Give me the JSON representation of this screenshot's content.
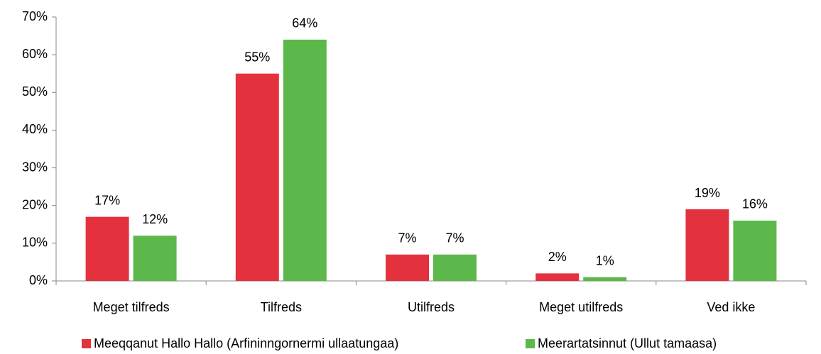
{
  "chart_data": {
    "type": "bar",
    "categories": [
      "Meget tilfreds",
      "Tilfreds",
      "Utilfreds",
      "Meget utilfreds",
      "Ved ikke"
    ],
    "series": [
      {
        "name": "Meeqqanut Hallo Hallo (Arfininngornermi ullaatungaa)",
        "color": "#e3323e",
        "values": [
          17,
          55,
          7,
          2,
          19
        ],
        "value_labels": [
          "17%",
          "55%",
          "7%",
          "2%",
          "19%"
        ]
      },
      {
        "name": "Meerartatsinnut (Ullut tamaasa)",
        "color": "#5cb84a",
        "values": [
          12,
          64,
          7,
          1,
          16
        ],
        "value_labels": [
          "12%",
          "64%",
          "7%",
          "1%",
          "16%"
        ]
      }
    ],
    "ylim": [
      0,
      70
    ],
    "yticks": [
      {
        "value": 0,
        "label": "0%"
      },
      {
        "value": 10,
        "label": "10%"
      },
      {
        "value": 20,
        "label": "20%"
      },
      {
        "value": 30,
        "label": "30%"
      },
      {
        "value": 40,
        "label": "40%"
      },
      {
        "value": 50,
        "label": "50%"
      },
      {
        "value": 60,
        "label": "60%"
      },
      {
        "value": 70,
        "label": "70%"
      }
    ],
    "legend": "bottom"
  }
}
